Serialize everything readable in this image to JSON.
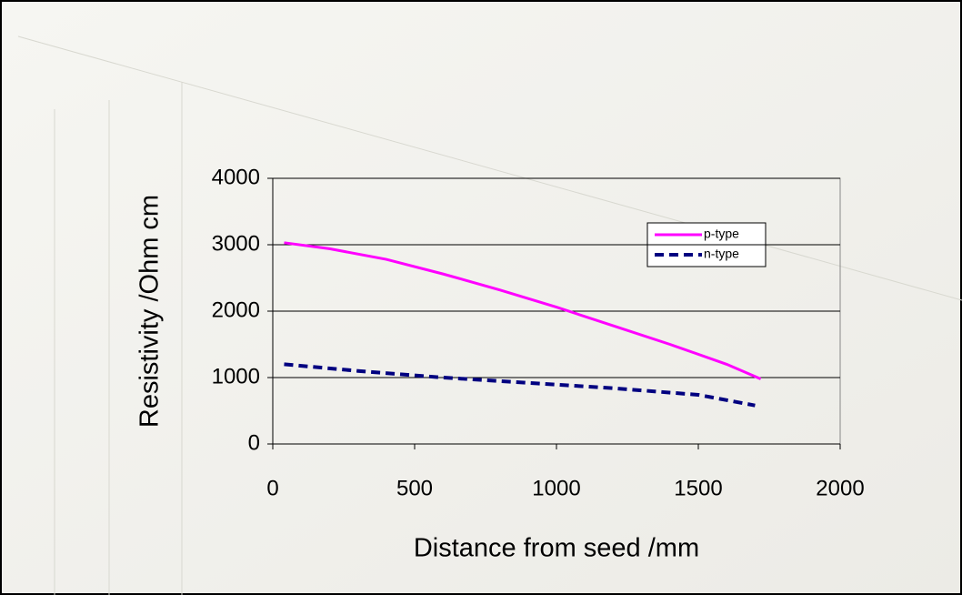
{
  "chart_data": {
    "type": "line",
    "x_label": "Distance from seed /mm",
    "y_label": "Resistivity /Ohm cm",
    "xlim": [
      0,
      2000
    ],
    "xticks": [
      0,
      500,
      1000,
      1500,
      2000
    ],
    "ylim": [
      0,
      4000
    ],
    "yticks": [
      0,
      1000,
      2000,
      3000,
      4000
    ],
    "grid": true,
    "legend": "upper right",
    "series": [
      {
        "name": "p-type",
        "color": "#ff00ff",
        "dash": "solid",
        "x": [
          40,
          200,
          400,
          600,
          800,
          1000,
          1200,
          1400,
          1600,
          1720
        ],
        "values": [
          3030,
          2940,
          2780,
          2560,
          2320,
          2060,
          1780,
          1500,
          1200,
          980
        ]
      },
      {
        "name": "n-type",
        "color": "#000080",
        "dash": "dashed",
        "x": [
          40,
          300,
          600,
          900,
          1200,
          1500,
          1700
        ],
        "values": [
          1200,
          1100,
          1000,
          920,
          840,
          740,
          580
        ]
      }
    ]
  }
}
